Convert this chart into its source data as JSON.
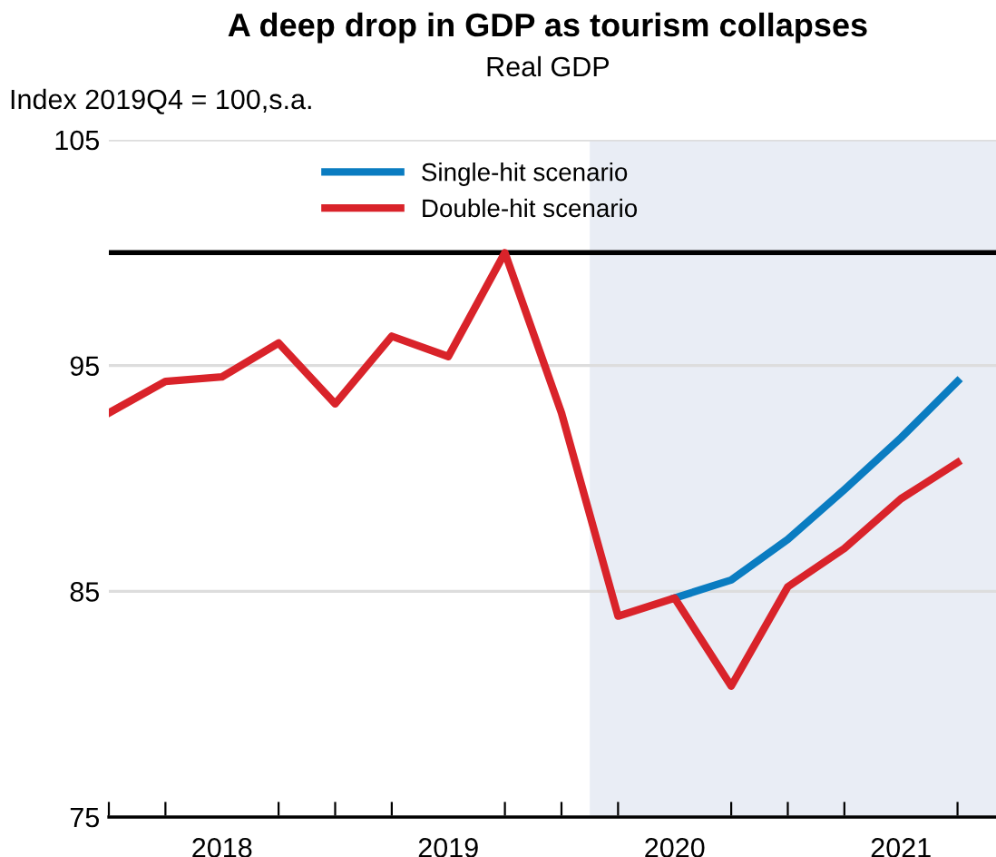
{
  "chart_data": {
    "type": "line",
    "title": "A deep drop in GDP as tourism collapses",
    "subtitle": "Real GDP",
    "ylabel": "Index 2019Q4 = 100,s.a.",
    "x": [
      2018,
      2018.25,
      2018.5,
      2018.75,
      2019,
      2019.25,
      2019.5,
      2019.75,
      2020,
      2020.25,
      2020.5,
      2020.75,
      2021,
      2021.25,
      2021.5,
      2021.75
    ],
    "series": [
      {
        "name": "Single-hit scenario",
        "color": "#0a7cc1",
        "values": [
          null,
          null,
          null,
          null,
          null,
          null,
          null,
          null,
          null,
          null,
          84.7,
          85.5,
          87.3,
          89.5,
          91.8,
          94.3
        ]
      },
      {
        "name": "Double-hit scenario",
        "color": "#d9232a",
        "values": [
          92.9,
          94.3,
          94.5,
          96.0,
          93.3,
          96.3,
          95.4,
          100,
          92.9,
          83.9,
          84.7,
          80.8,
          85.2,
          86.9,
          89.1,
          90.7
        ]
      }
    ],
    "xlim": [
      2018,
      2021.92
    ],
    "ylim": [
      75,
      105
    ],
    "yticks": [
      75,
      85,
      95,
      105
    ],
    "xticks": [
      {
        "value": 2018,
        "label": null
      },
      {
        "value": 2018.25,
        "label": null
      },
      {
        "value": 2018.5,
        "label": "2018"
      },
      {
        "value": 2018.75,
        "label": null
      },
      {
        "value": 2019,
        "label": null
      },
      {
        "value": 2019.25,
        "label": null
      },
      {
        "value": 2019.5,
        "label": "2019"
      },
      {
        "value": 2019.75,
        "label": null
      },
      {
        "value": 2020,
        "label": null
      },
      {
        "value": 2020.25,
        "label": null
      },
      {
        "value": 2020.5,
        "label": "2020"
      },
      {
        "value": 2020.75,
        "label": null
      },
      {
        "value": 2021,
        "label": null
      },
      {
        "value": 2021.25,
        "label": null
      },
      {
        "value": 2021.5,
        "label": "2021"
      },
      {
        "value": 2021.75,
        "label": null
      }
    ],
    "ref_lines": [
      {
        "axis": "y",
        "value": 100,
        "color": "#000000"
      }
    ],
    "bands": [
      {
        "axis": "x",
        "from": 2020.125,
        "to": 2021.92,
        "color": "#e9edf5"
      }
    ],
    "grid": "y",
    "legend": "top",
    "line_style": "solid",
    "marker": "none"
  }
}
